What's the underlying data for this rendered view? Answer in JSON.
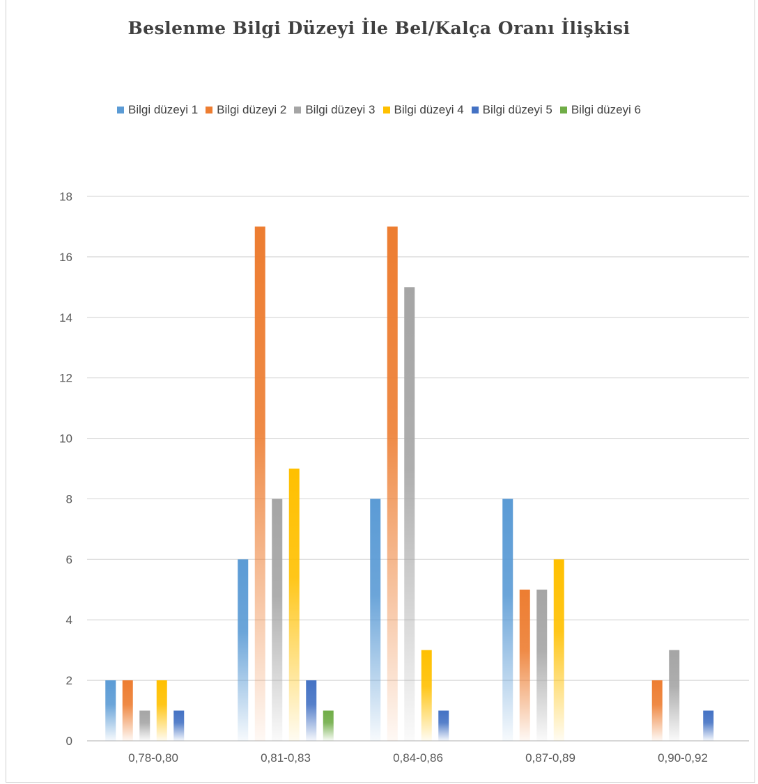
{
  "chart_data": {
    "type": "bar",
    "title": "Beslenme Bilgi Düzeyi İle Bel/Kalça Oranı İlişkisi",
    "xlabel": "",
    "ylabel": "",
    "categories": [
      "0,78-0,80",
      "0,81-0,83",
      "0,84-0,86",
      "0,87-0,89",
      "0,90-0,92"
    ],
    "ylim": [
      0,
      18
    ],
    "yticks": [
      "0",
      "2",
      "4",
      "6",
      "8",
      "10",
      "12",
      "14",
      "16",
      "18"
    ],
    "grid": true,
    "legend_position": "top",
    "series": [
      {
        "name": "Bilgi düzeyi 1",
        "color": "#5B9BD5",
        "values": [
          2,
          6,
          8,
          8,
          0
        ]
      },
      {
        "name": "Bilgi düzeyi 2",
        "color": "#ED7D31",
        "values": [
          2,
          17,
          17,
          5,
          2
        ]
      },
      {
        "name": "Bilgi düzeyi 3",
        "color": "#A5A5A5",
        "values": [
          1,
          8,
          15,
          5,
          3
        ]
      },
      {
        "name": "Bilgi düzeyi 4",
        "color": "#FFC000",
        "values": [
          2,
          9,
          3,
          6,
          0
        ]
      },
      {
        "name": "Bilgi düzeyi 5",
        "color": "#4472C4",
        "values": [
          1,
          2,
          1,
          0,
          1
        ]
      },
      {
        "name": "Bilgi düzeyi 6",
        "color": "#70AD47",
        "values": [
          0,
          1,
          0,
          0,
          0
        ]
      }
    ]
  }
}
